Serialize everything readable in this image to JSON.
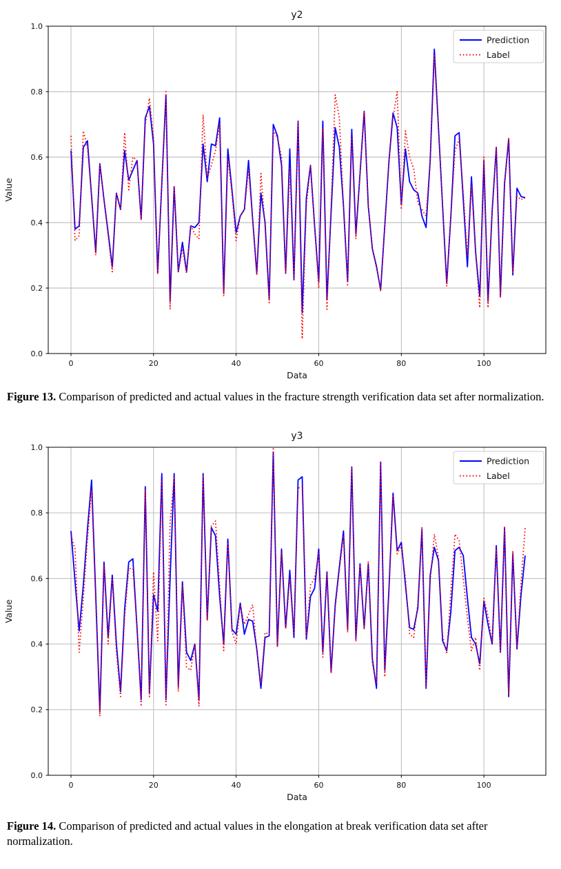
{
  "page": {
    "background": "#ffffff"
  },
  "figures": [
    {
      "label": "Figure 13.",
      "text": " Comparison of predicted and actual values in the fracture strength verification data set after normalization."
    },
    {
      "label": "Figure 14.",
      "text": " Comparison of predicted and actual values in the elongation at break verification data set after normalization."
    }
  ],
  "chart_data": [
    {
      "type": "line",
      "title": "y2",
      "xlabel": "Data",
      "ylabel": "Value",
      "xlim": [
        -5.5,
        115
      ],
      "ylim": [
        0,
        1
      ],
      "xticks": [
        0,
        20,
        40,
        60,
        80,
        100
      ],
      "yticks": [
        0,
        0.2,
        0.4,
        0.6,
        0.8,
        1.0
      ],
      "grid": true,
      "grid_color": "#b3b3b3",
      "legend_position": "upper right",
      "series": [
        {
          "name": "Prediction",
          "color": "#0000ff",
          "style": "solid",
          "values": [
            0.62,
            0.38,
            0.39,
            0.63,
            0.65,
            0.48,
            0.31,
            0.58,
            0.47,
            0.37,
            0.265,
            0.49,
            0.44,
            0.62,
            0.53,
            0.56,
            0.59,
            0.41,
            0.72,
            0.755,
            0.64,
            0.245,
            0.52,
            0.79,
            0.16,
            0.51,
            0.25,
            0.34,
            0.25,
            0.39,
            0.385,
            0.4,
            0.64,
            0.525,
            0.64,
            0.635,
            0.72,
            0.185,
            0.625,
            0.5,
            0.37,
            0.42,
            0.44,
            0.59,
            0.41,
            0.245,
            0.49,
            0.4,
            0.165,
            0.7,
            0.665,
            0.575,
            0.245,
            0.625,
            0.225,
            0.71,
            0.125,
            0.475,
            0.575,
            0.39,
            0.22,
            0.71,
            0.165,
            0.43,
            0.69,
            0.63,
            0.45,
            0.22,
            0.685,
            0.365,
            0.55,
            0.74,
            0.45,
            0.32,
            0.265,
            0.195,
            0.39,
            0.585,
            0.735,
            0.69,
            0.455,
            0.625,
            0.525,
            0.5,
            0.49,
            0.42,
            0.385,
            0.59,
            0.93,
            0.69,
            0.45,
            0.215,
            0.42,
            0.665,
            0.675,
            0.47,
            0.265,
            0.54,
            0.31,
            0.175,
            0.59,
            0.16,
            0.435,
            0.63,
            0.175,
            0.52,
            0.655,
            0.24,
            0.505,
            0.48,
            0.475
          ]
        },
        {
          "name": "Label",
          "color": "#ff0000",
          "style": "dotted",
          "values": [
            0.665,
            0.345,
            0.36,
            0.68,
            0.63,
            0.48,
            0.3,
            0.58,
            0.47,
            0.36,
            0.25,
            0.49,
            0.44,
            0.675,
            0.5,
            0.6,
            0.59,
            0.41,
            0.7,
            0.78,
            0.66,
            0.245,
            0.52,
            0.8,
            0.135,
            0.51,
            0.25,
            0.32,
            0.245,
            0.39,
            0.365,
            0.35,
            0.73,
            0.535,
            0.575,
            0.62,
            0.7,
            0.175,
            0.595,
            0.49,
            0.345,
            0.42,
            0.44,
            0.56,
            0.41,
            0.24,
            0.55,
            0.39,
            0.155,
            0.68,
            0.66,
            0.6,
            0.245,
            0.57,
            0.23,
            0.71,
            0.045,
            0.45,
            0.575,
            0.39,
            0.2,
            0.69,
            0.135,
            0.45,
            0.79,
            0.72,
            0.45,
            0.21,
            0.66,
            0.35,
            0.55,
            0.74,
            0.45,
            0.32,
            0.27,
            0.19,
            0.39,
            0.585,
            0.72,
            0.8,
            0.44,
            0.68,
            0.6,
            0.565,
            0.46,
            0.44,
            0.42,
            0.59,
            0.91,
            0.69,
            0.45,
            0.205,
            0.42,
            0.62,
            0.655,
            0.49,
            0.3,
            0.51,
            0.31,
            0.14,
            0.6,
            0.14,
            0.435,
            0.63,
            0.17,
            0.52,
            0.66,
            0.245,
            0.48,
            0.47,
            0.48
          ]
        }
      ]
    },
    {
      "type": "line",
      "title": "y3",
      "xlabel": "Data",
      "ylabel": "Value",
      "xlim": [
        -5.5,
        115
      ],
      "ylim": [
        0,
        1
      ],
      "xticks": [
        0,
        20,
        40,
        60,
        80,
        100
      ],
      "yticks": [
        0,
        0.2,
        0.4,
        0.6,
        0.8,
        1.0
      ],
      "grid": true,
      "grid_color": "#b3b3b3",
      "legend_position": "upper right",
      "series": [
        {
          "name": "Prediction",
          "color": "#0000ff",
          "style": "solid",
          "values": [
            0.745,
            0.59,
            0.44,
            0.58,
            0.75,
            0.9,
            0.55,
            0.195,
            0.65,
            0.42,
            0.61,
            0.4,
            0.255,
            0.505,
            0.65,
            0.66,
            0.45,
            0.23,
            0.88,
            0.25,
            0.55,
            0.5,
            0.92,
            0.23,
            0.6,
            0.92,
            0.27,
            0.59,
            0.375,
            0.35,
            0.4,
            0.23,
            0.92,
            0.475,
            0.755,
            0.73,
            0.545,
            0.4,
            0.72,
            0.445,
            0.43,
            0.525,
            0.43,
            0.475,
            0.47,
            0.385,
            0.265,
            0.42,
            0.425,
            0.985,
            0.395,
            0.69,
            0.45,
            0.625,
            0.42,
            0.9,
            0.91,
            0.415,
            0.545,
            0.57,
            0.69,
            0.375,
            0.62,
            0.315,
            0.52,
            0.635,
            0.745,
            0.445,
            0.94,
            0.415,
            0.645,
            0.45,
            0.645,
            0.355,
            0.265,
            0.955,
            0.32,
            0.565,
            0.86,
            0.685,
            0.71,
            0.58,
            0.45,
            0.445,
            0.51,
            0.75,
            0.265,
            0.61,
            0.695,
            0.655,
            0.41,
            0.38,
            0.5,
            0.685,
            0.695,
            0.67,
            0.54,
            0.42,
            0.4,
            0.34,
            0.53,
            0.46,
            0.4,
            0.7,
            0.375,
            0.755,
            0.24,
            0.675,
            0.385,
            0.55,
            0.67
          ]
        },
        {
          "name": "Label",
          "color": "#ff0000",
          "style": "dotted",
          "values": [
            0.73,
            0.69,
            0.375,
            0.54,
            0.72,
            0.87,
            0.53,
            0.18,
            0.64,
            0.4,
            0.6,
            0.375,
            0.24,
            0.48,
            0.63,
            0.63,
            0.45,
            0.21,
            0.87,
            0.24,
            0.62,
            0.41,
            0.9,
            0.215,
            0.77,
            0.91,
            0.255,
            0.58,
            0.33,
            0.32,
            0.4,
            0.21,
            0.915,
            0.47,
            0.76,
            0.775,
            0.58,
            0.38,
            0.71,
            0.44,
            0.4,
            0.52,
            0.46,
            0.49,
            0.52,
            0.38,
            0.28,
            0.435,
            0.43,
            1.0,
            0.39,
            0.68,
            0.445,
            0.6,
            0.435,
            0.875,
            0.88,
            0.42,
            0.58,
            0.6,
            0.68,
            0.36,
            0.615,
            0.31,
            0.51,
            0.625,
            0.73,
            0.435,
            0.935,
            0.41,
            0.64,
            0.445,
            0.655,
            0.34,
            0.28,
            0.955,
            0.3,
            0.555,
            0.85,
            0.675,
            0.7,
            0.6,
            0.43,
            0.42,
            0.525,
            0.755,
            0.27,
            0.59,
            0.735,
            0.665,
            0.425,
            0.37,
            0.56,
            0.735,
            0.715,
            0.6,
            0.48,
            0.38,
            0.42,
            0.32,
            0.54,
            0.485,
            0.405,
            0.69,
            0.375,
            0.76,
            0.245,
            0.685,
            0.39,
            0.585,
            0.755
          ]
        }
      ]
    }
  ]
}
